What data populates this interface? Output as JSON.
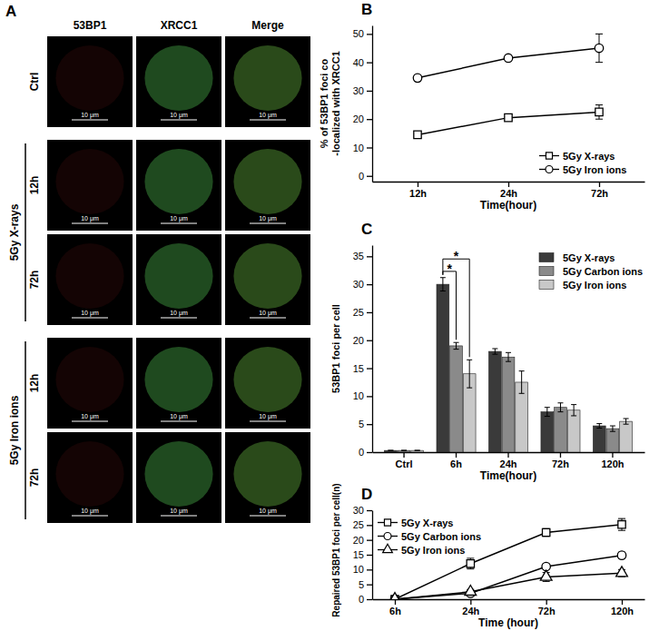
{
  "image_panel": {
    "panel_label": "A",
    "columns": [
      "53BP1",
      "XRCC1",
      "Merge"
    ],
    "row_groups": [
      {
        "label": "Ctrl",
        "rows": []
      },
      {
        "label": "5Gy X-rays",
        "rows": [
          "12h",
          "72h"
        ]
      },
      {
        "label": "5Gy Iron ions",
        "rows": [
          "12h",
          "72h"
        ]
      }
    ],
    "scale_bar": "10 μm"
  },
  "chart_data": [
    {
      "type": "line",
      "panel_label": "B",
      "x_label": "Time(hour)",
      "y_label": [
        "% of 53BP1 foci co",
        "-localized with XRCC1"
      ],
      "categories": [
        "12h",
        "24h",
        "72h"
      ],
      "ylim": [
        -2,
        53
      ],
      "yticks": [
        0,
        10,
        20,
        30,
        40,
        50
      ],
      "legend": "lower right",
      "series": [
        {
          "name": "5Gy X-rays",
          "color": "#000000",
          "marker": "square",
          "values": [
            14.5,
            20.5,
            22.5
          ],
          "error": [
            1,
            1,
            2.5
          ]
        },
        {
          "name": "5Gy Iron ions",
          "color": "#000000",
          "marker": "circle",
          "values": [
            34.5,
            41.5,
            45
          ],
          "error": [
            1,
            1,
            5
          ]
        }
      ]
    },
    {
      "type": "bar",
      "panel_label": "C",
      "x_label": "Time(hour)",
      "y_label": [
        "53BP1 foci per cell"
      ],
      "categories": [
        "Ctrl",
        "6h",
        "24h",
        "72h",
        "120h"
      ],
      "ylim": [
        0,
        37
      ],
      "yticks": [
        0,
        5,
        10,
        15,
        20,
        25,
        30,
        35
      ],
      "legend": "upper right",
      "annotations": [
        "*",
        "*"
      ],
      "series": [
        {
          "name": "5Gy X-rays",
          "color": "#3a3a3a",
          "values": [
            0.3,
            30,
            18,
            7.2,
            4.7
          ],
          "error": [
            0,
            1.2,
            0.5,
            0.8,
            0.4
          ]
        },
        {
          "name": "5Gy Carbon ions",
          "color": "#8a8a8a",
          "values": [
            0.3,
            19,
            17,
            8,
            4.2
          ],
          "error": [
            0,
            0.6,
            0.8,
            0.8,
            0.5
          ]
        },
        {
          "name": "5Gy Iron ions",
          "color": "#c8c8c8",
          "values": [
            0.3,
            14,
            12.5,
            7.5,
            5.5
          ],
          "error": [
            0,
            2.5,
            2,
            1,
            0.5
          ]
        }
      ]
    },
    {
      "type": "line",
      "panel_label": "D",
      "x_label": "Time (hour)",
      "y_label": [
        "Repaired 53BP1 foci per cell(n)"
      ],
      "categories": [
        "6h",
        "24h",
        "72h",
        "120h"
      ],
      "ylim": [
        0,
        30
      ],
      "yticks": [
        0,
        5,
        10,
        15,
        20,
        25,
        30
      ],
      "legend": "upper left",
      "series": [
        {
          "name": "5Gy X-rays",
          "color": "#000000",
          "marker": "square",
          "values": [
            0,
            12,
            22.5,
            25.2
          ],
          "error": [
            0,
            1.8,
            1.3,
            2
          ]
        },
        {
          "name": "5Gy Carbon ions",
          "color": "#000000",
          "marker": "circle",
          "values": [
            0,
            2,
            11,
            14.8
          ],
          "error": [
            0,
            0.5,
            0.8,
            1
          ]
        },
        {
          "name": "5Gy Iron ions",
          "color": "#000000",
          "marker": "triangle",
          "values": [
            0,
            2.5,
            7.5,
            8.8
          ],
          "error": [
            0,
            0.8,
            1.5,
            1.2
          ]
        }
      ]
    }
  ]
}
